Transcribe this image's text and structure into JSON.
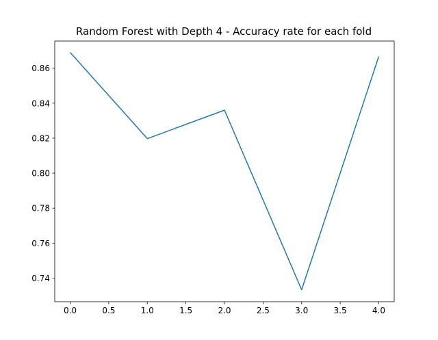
{
  "chart_data": {
    "type": "line",
    "title": "Random Forest with Depth 4 - Accuracy rate for each fold",
    "xlabel": "",
    "ylabel": "",
    "x": [
      0,
      1,
      2,
      3,
      4
    ],
    "series": [
      {
        "values": [
          0.869,
          0.8197,
          0.836,
          0.7333,
          0.8667
        ],
        "color": "#1f77b4"
      }
    ],
    "xlim": [
      -0.2,
      4.2
    ],
    "ylim": [
      0.7265,
      0.8755
    ],
    "xticks": [
      0.0,
      0.5,
      1.0,
      1.5,
      2.0,
      2.5,
      3.0,
      3.5,
      4.0
    ],
    "xtick_labels": [
      "0.0",
      "0.5",
      "1.0",
      "1.5",
      "2.0",
      "2.5",
      "3.0",
      "3.5",
      "4.0"
    ],
    "yticks": [
      0.74,
      0.76,
      0.78,
      0.8,
      0.82,
      0.84,
      0.86
    ],
    "ytick_labels": [
      "0.74",
      "0.76",
      "0.78",
      "0.80",
      "0.82",
      "0.84",
      "0.86"
    ],
    "grid": false,
    "legend": "none"
  }
}
